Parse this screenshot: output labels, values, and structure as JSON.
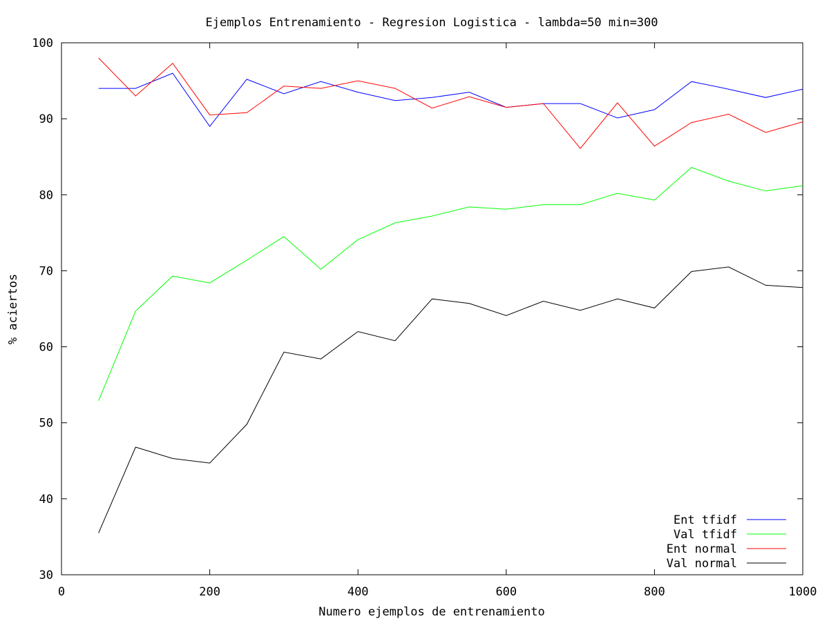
{
  "chart_data": {
    "type": "line",
    "title": "Ejemplos Entrenamiento - Regresion Logistica - lambda=50 min=300",
    "xlabel": "Numero ejemplos de entrenamiento",
    "ylabel": "% aciertos",
    "xlim": [
      0,
      1000
    ],
    "ylim": [
      30,
      100
    ],
    "xticks": [
      0,
      200,
      400,
      600,
      800,
      1000
    ],
    "yticks": [
      30,
      40,
      50,
      60,
      70,
      80,
      90,
      100
    ],
    "xtick_labels": [
      "0",
      "200",
      "400",
      "600",
      "800",
      "1000"
    ],
    "ytick_labels": [
      "30",
      "40",
      "50",
      "60",
      "70",
      "80",
      "90",
      "100"
    ],
    "grid": false,
    "legend_position": "bottom-right",
    "x": [
      50,
      100,
      150,
      200,
      250,
      300,
      350,
      400,
      450,
      500,
      550,
      600,
      650,
      700,
      750,
      800,
      850,
      900,
      950,
      1000
    ],
    "series": [
      {
        "name": "Ent tfidf",
        "color": "#0000ff",
        "values": [
          94.0,
          94.0,
          96.0,
          89.0,
          95.2,
          93.3,
          94.9,
          93.5,
          92.4,
          92.8,
          93.5,
          91.5,
          92.0,
          92.0,
          90.1,
          91.2,
          94.9,
          93.9,
          92.8,
          93.9
        ]
      },
      {
        "name": "Val tfidf",
        "color": "#00ff00",
        "values": [
          52.9,
          64.7,
          69.3,
          68.4,
          71.4,
          74.5,
          70.2,
          74.1,
          76.3,
          77.2,
          78.4,
          78.1,
          78.7,
          78.7,
          80.2,
          79.3,
          83.6,
          81.8,
          80.5,
          81.2
        ]
      },
      {
        "name": "Ent normal",
        "color": "#ff0000",
        "values": [
          98.0,
          93.0,
          97.3,
          90.5,
          90.8,
          94.3,
          94.0,
          95.0,
          94.0,
          91.4,
          92.9,
          91.5,
          92.0,
          86.1,
          92.1,
          86.4,
          89.5,
          90.6,
          88.2,
          89.6
        ]
      },
      {
        "name": "Val normal",
        "color": "#000000",
        "values": [
          35.5,
          46.8,
          45.3,
          44.7,
          49.8,
          59.3,
          58.4,
          62.0,
          60.8,
          66.3,
          65.7,
          64.1,
          66.0,
          64.8,
          66.3,
          65.1,
          69.9,
          70.5,
          68.1,
          67.8
        ]
      }
    ]
  }
}
